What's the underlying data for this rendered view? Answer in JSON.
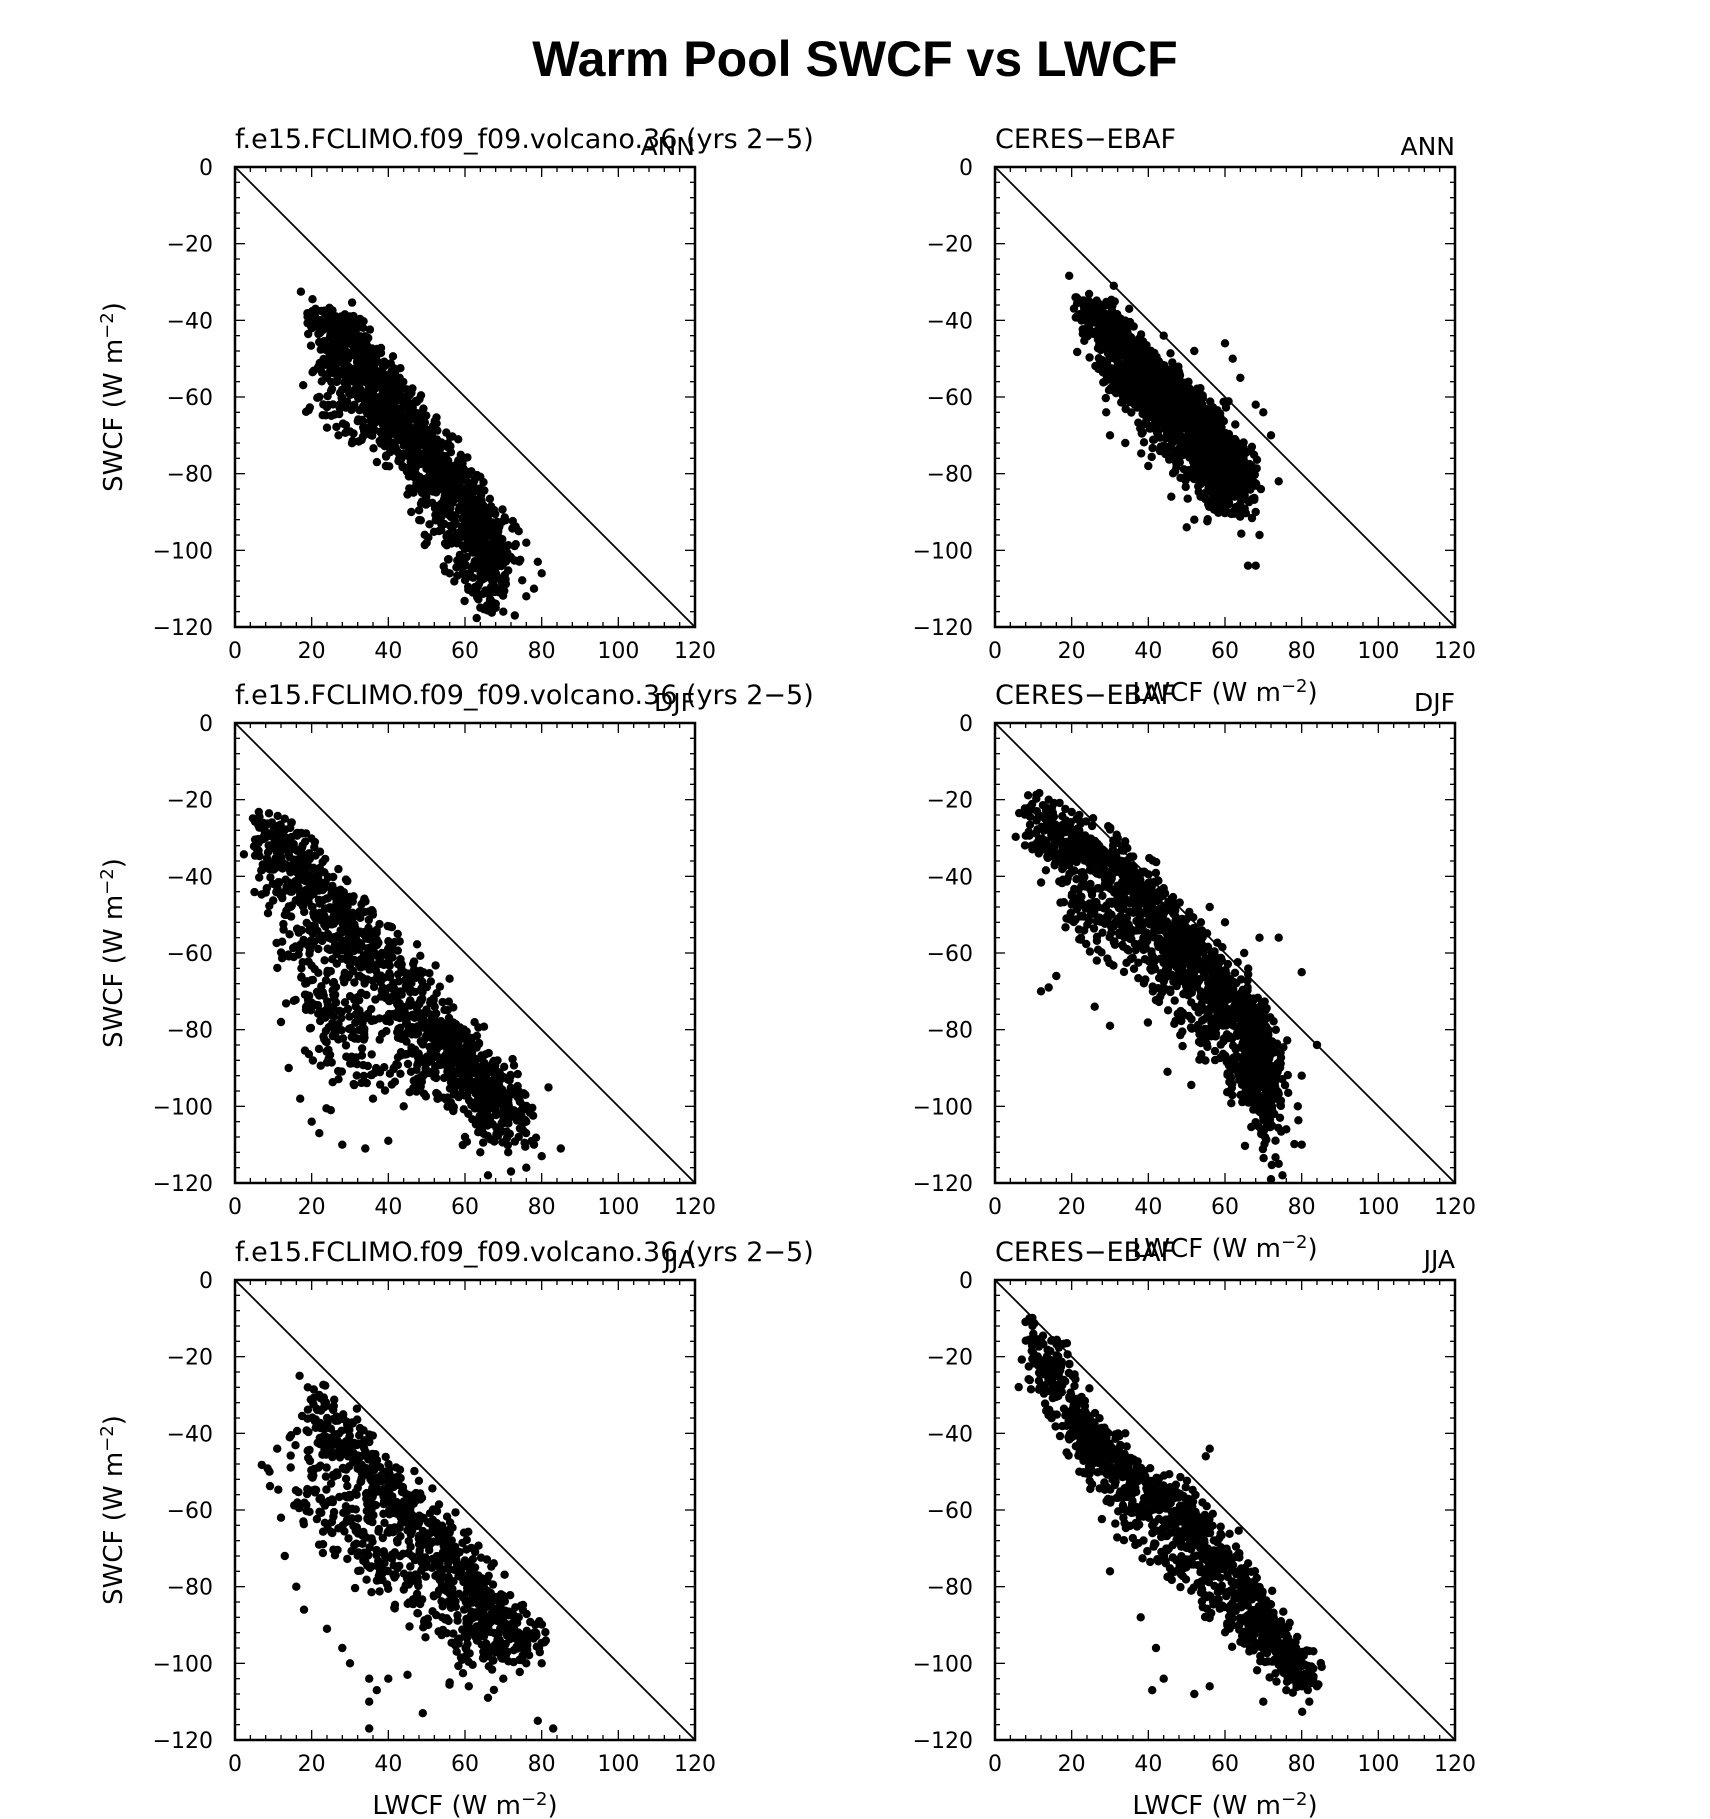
{
  "title": "Warm Pool SWCF vs LWCF",
  "colors": {
    "ink": "#000000",
    "background": "#ffffff"
  },
  "chart_data": [
    {
      "type": "scatter",
      "position": "top-left",
      "left_title": "f.e15.FCLIMO.f09_f09.volcano.36 (yrs 2−5)",
      "right_title": "ANN",
      "xlabel": "",
      "ylabel": "SWCF (W m⁻²)",
      "xlim": [
        0,
        120
      ],
      "ylim": [
        -120,
        0
      ],
      "xticks": [
        0,
        20,
        40,
        60,
        80,
        100,
        120
      ],
      "yticks": [
        0,
        -20,
        -40,
        -60,
        -80,
        -100,
        -120
      ],
      "reference_line": "1:1 (SWCF = -LWCF)",
      "cloud": {
        "main": [
          [
            21,
            -38
          ],
          [
            31,
            -44
          ],
          [
            41,
            -58
          ],
          [
            52,
            -72
          ],
          [
            62,
            -86
          ],
          [
            70,
            -100
          ]
        ],
        "lower": [
          [
            21,
            -62
          ],
          [
            30,
            -68
          ],
          [
            40,
            -74
          ],
          [
            50,
            -90
          ],
          [
            60,
            -108
          ],
          [
            68,
            -117
          ]
        ],
        "spread": 4.0,
        "count": 1500,
        "seed": 11
      },
      "points": [
        [
          21,
          -37
        ],
        [
          24,
          -38
        ],
        [
          30,
          -39
        ],
        [
          32,
          -42
        ],
        [
          28,
          -46
        ],
        [
          24,
          -55
        ],
        [
          22,
          -60
        ],
        [
          24,
          -68
        ],
        [
          27,
          -70
        ],
        [
          30,
          -69
        ],
        [
          34,
          -68
        ],
        [
          36,
          -66
        ],
        [
          44,
          -62
        ],
        [
          48,
          -70
        ],
        [
          52,
          -74
        ],
        [
          54,
          -82
        ],
        [
          58,
          -80
        ],
        [
          60,
          -84
        ],
        [
          63,
          -90
        ],
        [
          66,
          -93
        ],
        [
          68,
          -96
        ],
        [
          70,
          -100
        ],
        [
          72,
          -102
        ],
        [
          74,
          -95
        ],
        [
          76,
          -98
        ],
        [
          79,
          -103
        ],
        [
          80,
          -106
        ],
        [
          78,
          -110
        ],
        [
          76,
          -112
        ],
        [
          73,
          -117
        ],
        [
          70,
          -116
        ],
        [
          68,
          -115
        ],
        [
          64,
          -107
        ],
        [
          62,
          -111
        ],
        [
          60,
          -104
        ],
        [
          56,
          -106
        ],
        [
          50,
          -98
        ],
        [
          46,
          -90
        ],
        [
          46,
          -84
        ]
      ]
    },
    {
      "type": "scatter",
      "position": "top-right",
      "left_title": "CERES−EBAF",
      "right_title": "ANN",
      "xlabel": "LWCF (W m⁻²)",
      "ylabel": "",
      "xlim": [
        0,
        120
      ],
      "ylim": [
        -120,
        0
      ],
      "xticks": [
        0,
        20,
        40,
        60,
        80,
        100,
        120
      ],
      "yticks": [
        0,
        -20,
        -40,
        -60,
        -80,
        -100,
        -120
      ],
      "reference_line": "1:1 (SWCF = -LWCF)",
      "cloud": {
        "main": [
          [
            21,
            -35
          ],
          [
            30,
            -40
          ],
          [
            40,
            -52
          ],
          [
            50,
            -60
          ],
          [
            58,
            -70
          ],
          [
            65,
            -78
          ]
        ],
        "lower": [
          [
            30,
            -55
          ],
          [
            40,
            -68
          ],
          [
            50,
            -80
          ],
          [
            58,
            -88
          ],
          [
            66,
            -90
          ]
        ],
        "spread": 4.0,
        "count": 1600,
        "seed": 23
      },
      "points": [
        [
          21,
          -34
        ],
        [
          31,
          -31
        ],
        [
          35,
          -37
        ],
        [
          44,
          -44
        ],
        [
          52,
          -48
        ],
        [
          60,
          -46
        ],
        [
          62,
          -50
        ],
        [
          64,
          -55
        ],
        [
          68,
          -62
        ],
        [
          70,
          -64
        ],
        [
          72,
          -70
        ],
        [
          74,
          -82
        ],
        [
          68,
          -90
        ],
        [
          69,
          -96
        ],
        [
          66,
          -104
        ],
        [
          68,
          -104
        ],
        [
          52,
          -92
        ],
        [
          50,
          -94
        ],
        [
          46,
          -86
        ],
        [
          40,
          -78
        ],
        [
          34,
          -72
        ],
        [
          30,
          -70
        ],
        [
          29,
          -64
        ]
      ]
    },
    {
      "type": "scatter",
      "position": "middle-left",
      "left_title": "f.e15.FCLIMO.f09_f09.volcano.36 (yrs 2−5)",
      "right_title": "DJF",
      "xlabel": "",
      "ylabel": "SWCF (W m⁻²)",
      "xlim": [
        0,
        120
      ],
      "ylim": [
        -120,
        0
      ],
      "xticks": [
        0,
        20,
        40,
        60,
        80,
        100,
        120
      ],
      "yticks": [
        0,
        -20,
        -40,
        -60,
        -80,
        -100,
        -120
      ],
      "reference_line": "1:1 (SWCF = -LWCF)",
      "cloud": {
        "main": [
          [
            6,
            -26
          ],
          [
            15,
            -30
          ],
          [
            25,
            -44
          ],
          [
            35,
            -55
          ],
          [
            45,
            -66
          ],
          [
            55,
            -80
          ],
          [
            65,
            -90
          ],
          [
            75,
            -102
          ]
        ],
        "lower": [
          [
            8,
            -36
          ],
          [
            12,
            -55
          ],
          [
            18,
            -72
          ],
          [
            20,
            -90
          ],
          [
            28,
            -96
          ],
          [
            40,
            -94
          ],
          [
            52,
            -96
          ],
          [
            62,
            -106
          ],
          [
            72,
            -110
          ]
        ],
        "spread": 5.0,
        "count": 1400,
        "seed": 37
      },
      "points": [
        [
          6,
          -26
        ],
        [
          10,
          -27
        ],
        [
          16,
          -29
        ],
        [
          12,
          -78
        ],
        [
          14,
          -90
        ],
        [
          17,
          -98
        ],
        [
          20,
          -104
        ],
        [
          22,
          -107
        ],
        [
          25,
          -101
        ],
        [
          28,
          -110
        ],
        [
          34,
          -111
        ],
        [
          40,
          -109
        ],
        [
          36,
          -98
        ],
        [
          44,
          -100
        ],
        [
          60,
          -108
        ],
        [
          64,
          -112
        ],
        [
          66,
          -118
        ],
        [
          72,
          -117
        ],
        [
          76,
          -116
        ],
        [
          80,
          -113
        ],
        [
          85,
          -111
        ],
        [
          78,
          -110
        ],
        [
          74,
          -108
        ],
        [
          76,
          -104
        ]
      ]
    },
    {
      "type": "scatter",
      "position": "middle-right",
      "left_title": "CERES−EBAF",
      "right_title": "DJF",
      "xlabel": "LWCF (W m⁻²)",
      "ylabel": "",
      "xlim": [
        0,
        120
      ],
      "ylim": [
        -120,
        0
      ],
      "xticks": [
        0,
        20,
        40,
        60,
        80,
        100,
        120
      ],
      "yticks": [
        0,
        -20,
        -40,
        -60,
        -80,
        -100,
        -120
      ],
      "reference_line": "1:1 (SWCF = -LWCF)",
      "cloud": {
        "main": [
          [
            9,
            -22
          ],
          [
            20,
            -28
          ],
          [
            30,
            -34
          ],
          [
            40,
            -44
          ],
          [
            50,
            -56
          ],
          [
            60,
            -66
          ],
          [
            68,
            -78
          ],
          [
            72,
            -92
          ]
        ],
        "lower": [
          [
            12,
            -40
          ],
          [
            20,
            -55
          ],
          [
            30,
            -60
          ],
          [
            40,
            -68
          ],
          [
            50,
            -80
          ],
          [
            60,
            -90
          ],
          [
            68,
            -100
          ],
          [
            72,
            -115
          ]
        ],
        "spread": 4.5,
        "count": 1600,
        "seed": 53
      },
      "points": [
        [
          9,
          -22
        ],
        [
          14,
          -20
        ],
        [
          22,
          -24
        ],
        [
          32,
          -30
        ],
        [
          36,
          -38
        ],
        [
          44,
          -44
        ],
        [
          56,
          -48
        ],
        [
          60,
          -52
        ],
        [
          65,
          -60
        ],
        [
          69,
          -56
        ],
        [
          74,
          -56
        ],
        [
          80,
          -65
        ],
        [
          84,
          -84
        ],
        [
          80,
          -92
        ],
        [
          79,
          -100
        ],
        [
          76,
          -106
        ],
        [
          80,
          -110
        ],
        [
          74,
          -115
        ],
        [
          72,
          -119
        ],
        [
          75,
          -118
        ],
        [
          45,
          -91
        ],
        [
          30,
          -79
        ],
        [
          26,
          -74
        ],
        [
          14,
          -69
        ],
        [
          12,
          -70
        ],
        [
          16,
          -66
        ]
      ]
    },
    {
      "type": "scatter",
      "position": "bottom-left",
      "left_title": "f.e15.FCLIMO.f09_f09.volcano.36 (yrs 2−5)",
      "right_title": "JJA",
      "xlabel": "LWCF (W m⁻²)",
      "ylabel": "SWCF (W m⁻²)",
      "xlim": [
        0,
        120
      ],
      "ylim": [
        -120,
        0
      ],
      "xticks": [
        0,
        20,
        40,
        60,
        80,
        100,
        120
      ],
      "yticks": [
        0,
        -20,
        -40,
        -60,
        -80,
        -100,
        -120
      ],
      "reference_line": "1:1 (SWCF = -LWCF)",
      "cloud": {
        "main": [
          [
            20,
            -29
          ],
          [
            30,
            -40
          ],
          [
            40,
            -52
          ],
          [
            50,
            -62
          ],
          [
            60,
            -74
          ],
          [
            70,
            -86
          ],
          [
            78,
            -96
          ]
        ],
        "lower": [
          [
            10,
            -52
          ],
          [
            16,
            -60
          ],
          [
            24,
            -68
          ],
          [
            32,
            -74
          ],
          [
            42,
            -84
          ],
          [
            52,
            -92
          ],
          [
            62,
            -102
          ]
        ],
        "spread": 5.0,
        "count": 1000,
        "seed": 71
      },
      "points": [
        [
          19,
          -28
        ],
        [
          22,
          -30
        ],
        [
          11,
          -44
        ],
        [
          9,
          -50
        ],
        [
          12,
          -62
        ],
        [
          13,
          -72
        ],
        [
          16,
          -80
        ],
        [
          18,
          -86
        ],
        [
          24,
          -91
        ],
        [
          28,
          -96
        ],
        [
          30,
          -100
        ],
        [
          35,
          -104
        ],
        [
          37,
          -107
        ],
        [
          35,
          -110
        ],
        [
          35,
          -117
        ],
        [
          40,
          -104
        ],
        [
          45,
          -103
        ],
        [
          49,
          -113
        ],
        [
          56,
          -105
        ],
        [
          61,
          -106
        ],
        [
          66,
          -109
        ],
        [
          70,
          -104
        ],
        [
          76,
          -100
        ],
        [
          80,
          -100
        ],
        [
          79,
          -115
        ],
        [
          83,
          -117
        ],
        [
          75,
          -98
        ],
        [
          78,
          -92
        ]
      ]
    },
    {
      "type": "scatter",
      "position": "bottom-right",
      "left_title": "CERES−EBAF",
      "right_title": "JJA",
      "xlabel": "LWCF (W m⁻²)",
      "ylabel": "",
      "xlim": [
        0,
        120
      ],
      "ylim": [
        -120,
        0
      ],
      "xticks": [
        0,
        20,
        40,
        60,
        80,
        100,
        120
      ],
      "yticks": [
        0,
        -20,
        -40,
        -60,
        -80,
        -100,
        -120
      ],
      "reference_line": "1:1 (SWCF = -LWCF)",
      "cloud": {
        "main": [
          [
            9,
            -12
          ],
          [
            15,
            -22
          ],
          [
            22,
            -35
          ],
          [
            30,
            -45
          ],
          [
            40,
            -52
          ],
          [
            50,
            -58
          ],
          [
            60,
            -70
          ],
          [
            70,
            -84
          ],
          [
            78,
            -98
          ],
          [
            82,
            -106
          ]
        ],
        "lower": [
          [
            12,
            -30
          ],
          [
            20,
            -42
          ],
          [
            28,
            -55
          ],
          [
            36,
            -66
          ],
          [
            46,
            -76
          ],
          [
            56,
            -84
          ],
          [
            66,
            -92
          ]
        ],
        "spread": 4.0,
        "count": 1200,
        "seed": 89
      },
      "points": [
        [
          9,
          -10
        ],
        [
          10,
          -14
        ],
        [
          56,
          -44
        ],
        [
          55,
          -46
        ],
        [
          34,
          -40
        ],
        [
          30,
          -45
        ],
        [
          22,
          -50
        ],
        [
          30,
          -76
        ],
        [
          38,
          -88
        ],
        [
          42,
          -96
        ],
        [
          41,
          -107
        ],
        [
          44,
          -104
        ],
        [
          52,
          -108
        ],
        [
          56,
          -106
        ],
        [
          70,
          -110
        ],
        [
          76,
          -107
        ],
        [
          82,
          -110
        ],
        [
          83,
          -104
        ],
        [
          80,
          -106
        ],
        [
          78,
          -98
        ],
        [
          84,
          -106
        ]
      ]
    }
  ]
}
